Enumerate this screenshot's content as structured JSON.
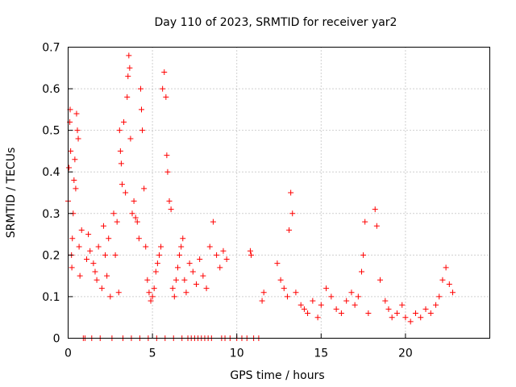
{
  "chart_data": {
    "type": "scatter",
    "title": "Day 110 of 2023, SRMTID for receiver yar2",
    "xlabel": "GPS time / hours",
    "ylabel": "SRMTID / TECUs",
    "xlim": [
      0,
      25
    ],
    "ylim": [
      0,
      0.7
    ],
    "xticks": [
      0,
      5,
      10,
      15,
      20
    ],
    "yticks": [
      0,
      0.1,
      0.2,
      0.3,
      0.4,
      0.5,
      0.6,
      0.7
    ],
    "xtick_labels": [
      "0",
      "5",
      "10",
      "15",
      "20"
    ],
    "ytick_labels": [
      "0",
      "0.1",
      "0.2",
      "0.3",
      "0.4",
      "0.5",
      "0.6",
      "0.7"
    ],
    "grid": true,
    "marker": "+",
    "color": "#ff0000",
    "series": [
      {
        "name": "SRMTID",
        "x": [
          0.0,
          0.05,
          0.1,
          0.12,
          0.15,
          0.2,
          0.22,
          0.25,
          0.3,
          0.35,
          0.4,
          0.45,
          0.5,
          0.55,
          0.6,
          0.65,
          0.7,
          0.8,
          1.1,
          1.2,
          1.3,
          1.5,
          1.6,
          1.7,
          1.8,
          2.0,
          2.1,
          2.2,
          2.3,
          2.4,
          2.5,
          2.7,
          2.8,
          2.9,
          3.0,
          3.05,
          3.1,
          3.15,
          3.2,
          3.3,
          3.4,
          3.5,
          3.55,
          3.6,
          3.65,
          3.7,
          3.8,
          3.9,
          4.0,
          4.1,
          4.2,
          4.3,
          4.35,
          4.4,
          4.5,
          4.6,
          4.7,
          4.8,
          4.9,
          5.0,
          5.1,
          5.2,
          5.3,
          5.4,
          5.5,
          5.6,
          5.7,
          5.8,
          5.85,
          5.9,
          6.0,
          6.1,
          6.2,
          6.3,
          6.4,
          6.5,
          6.6,
          6.7,
          6.8,
          6.9,
          7.0,
          7.2,
          7.4,
          7.6,
          7.8,
          8.0,
          8.2,
          8.4,
          8.6,
          8.8,
          9.0,
          9.2,
          9.4,
          10.8,
          10.85,
          11.5,
          11.6,
          12.4,
          12.6,
          12.8,
          13.0,
          13.1,
          13.2,
          13.3,
          13.5,
          13.8,
          14.0,
          14.2,
          14.5,
          14.8,
          15.0,
          15.3,
          15.6,
          15.9,
          16.2,
          16.5,
          16.8,
          17.0,
          17.2,
          17.4,
          17.5,
          17.6,
          17.8,
          18.2,
          18.3,
          18.5,
          18.8,
          19.0,
          19.2,
          19.5,
          19.8,
          20.0,
          20.3,
          20.6,
          20.9,
          21.2,
          21.5,
          21.8,
          22.0,
          22.2,
          22.4,
          22.6,
          22.8,
          0.9,
          1.0,
          1.4,
          1.9,
          2.6,
          3.25,
          3.75,
          4.25,
          4.75,
          5.25,
          5.75,
          6.25,
          6.75,
          7.1,
          7.3,
          7.5,
          7.7,
          7.9,
          8.1,
          8.3,
          8.5,
          9.1,
          9.3,
          9.6,
          10.0,
          10.3,
          10.6,
          11.0,
          11.3
        ],
        "y": [
          0.33,
          0.41,
          0.52,
          0.55,
          0.45,
          0.2,
          0.17,
          0.24,
          0.3,
          0.38,
          0.43,
          0.36,
          0.54,
          0.5,
          0.48,
          0.22,
          0.15,
          0.26,
          0.19,
          0.25,
          0.21,
          0.18,
          0.16,
          0.14,
          0.22,
          0.12,
          0.27,
          0.2,
          0.15,
          0.24,
          0.1,
          0.3,
          0.2,
          0.28,
          0.11,
          0.5,
          0.45,
          0.42,
          0.37,
          0.52,
          0.35,
          0.58,
          0.63,
          0.68,
          0.65,
          0.48,
          0.3,
          0.33,
          0.29,
          0.28,
          0.24,
          0.6,
          0.55,
          0.5,
          0.36,
          0.22,
          0.14,
          0.11,
          0.09,
          0.1,
          0.12,
          0.16,
          0.18,
          0.2,
          0.22,
          0.6,
          0.64,
          0.58,
          0.44,
          0.4,
          0.33,
          0.31,
          0.12,
          0.1,
          0.14,
          0.17,
          0.2,
          0.22,
          0.24,
          0.14,
          0.11,
          0.18,
          0.16,
          0.13,
          0.19,
          0.15,
          0.12,
          0.22,
          0.28,
          0.2,
          0.17,
          0.21,
          0.19,
          0.21,
          0.2,
          0.09,
          0.11,
          0.18,
          0.14,
          0.12,
          0.1,
          0.26,
          0.35,
          0.3,
          0.11,
          0.08,
          0.07,
          0.06,
          0.09,
          0.05,
          0.08,
          0.12,
          0.1,
          0.07,
          0.06,
          0.09,
          0.11,
          0.08,
          0.1,
          0.16,
          0.2,
          0.28,
          0.06,
          0.31,
          0.27,
          0.14,
          0.09,
          0.07,
          0.05,
          0.06,
          0.08,
          0.05,
          0.04,
          0.06,
          0.05,
          0.07,
          0.06,
          0.08,
          0.1,
          0.14,
          0.17,
          0.13,
          0.11,
          0.0,
          0.0,
          0.0,
          0.0,
          0.0,
          0.0,
          0.0,
          0.0,
          0.0,
          0.0,
          0.0,
          0.0,
          0.0,
          0.0,
          0.0,
          0.0,
          0.0,
          0.0,
          0.0,
          0.0,
          0.0,
          0.0,
          0.0,
          0.0,
          0.0,
          0.0,
          0.0,
          0.0,
          0.0
        ]
      }
    ]
  }
}
